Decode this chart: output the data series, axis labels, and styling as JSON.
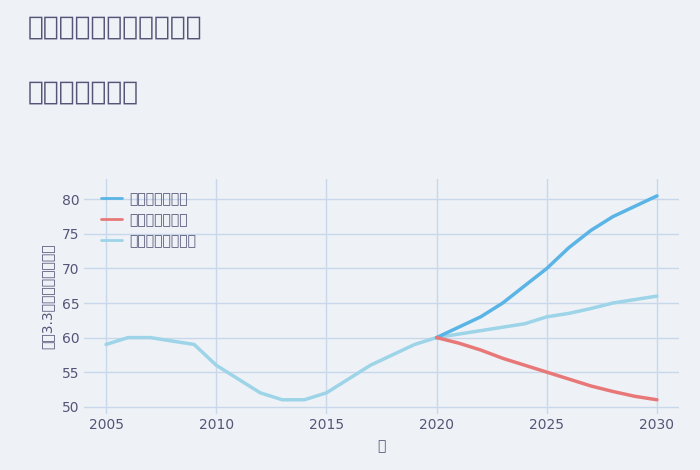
{
  "title_line1": "兵庫県宝塚市下佐曽利の",
  "title_line2": "土地の価格推移",
  "xlabel": "年",
  "ylabel": "坪（3.3㎡）単価（万円）",
  "background_color": "#eef2f7",
  "plot_bg_color": "#eef2f7",
  "historical_x": [
    2005,
    2006,
    2007,
    2008,
    2009,
    2010,
    2011,
    2012,
    2013,
    2014,
    2015,
    2016,
    2017,
    2018,
    2019,
    2020
  ],
  "historical_y": [
    59,
    60,
    60,
    59.5,
    59,
    56,
    54,
    52,
    51,
    51,
    52,
    54,
    56,
    57.5,
    59,
    60
  ],
  "good_x": [
    2020,
    2021,
    2022,
    2023,
    2024,
    2025,
    2026,
    2027,
    2028,
    2029,
    2030
  ],
  "good_y": [
    60,
    61.5,
    63,
    65,
    67.5,
    70,
    73,
    75.5,
    77.5,
    79,
    80.5
  ],
  "bad_x": [
    2020,
    2021,
    2022,
    2023,
    2024,
    2025,
    2026,
    2027,
    2028,
    2029,
    2030
  ],
  "bad_y": [
    60,
    59.2,
    58.2,
    57,
    56,
    55,
    54,
    53,
    52.2,
    51.5,
    51
  ],
  "normal_x": [
    2020,
    2021,
    2022,
    2023,
    2024,
    2025,
    2026,
    2027,
    2028,
    2029,
    2030
  ],
  "normal_y": [
    60,
    60.5,
    61,
    61.5,
    62,
    63,
    63.5,
    64.2,
    65,
    65.5,
    66
  ],
  "good_color": "#5ab4e5",
  "bad_color": "#e87878",
  "normal_color": "#9dd4e8",
  "hist_color": "#9dd4e8",
  "legend_labels": [
    "グッドシナリオ",
    "バッドシナリオ",
    "ノーマルシナリオ"
  ],
  "ylim": [
    49,
    83
  ],
  "xlim": [
    2004,
    2031
  ],
  "xticks": [
    2005,
    2010,
    2015,
    2020,
    2025,
    2030
  ],
  "yticks": [
    50,
    55,
    60,
    65,
    70,
    75,
    80
  ],
  "title_fontsize": 19,
  "label_fontsize": 10,
  "legend_fontsize": 10,
  "tick_fontsize": 10,
  "grid_color": "#c8d8ea",
  "text_color": "#555577"
}
